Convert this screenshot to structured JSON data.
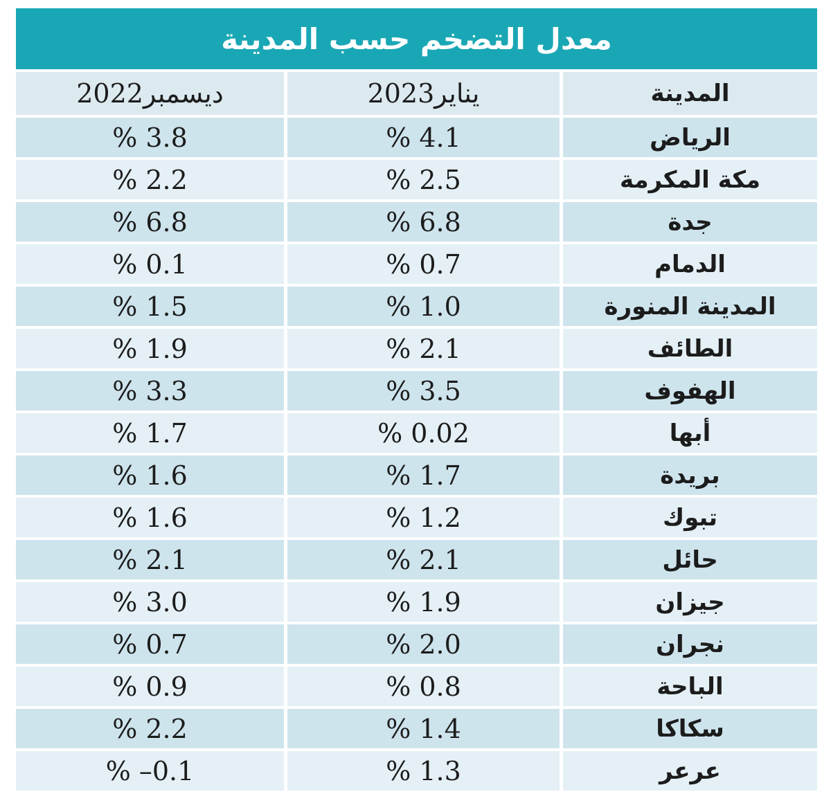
{
  "title": "معدل التضخم حسب المدينة",
  "header": {
    "city": "المدينة",
    "jan2023": "يناير2023",
    "dec2022": "ديسمبر2022"
  },
  "rows": [
    {
      "city": "الرياض",
      "jan": "% 4.1",
      "dec": "% 3.8"
    },
    {
      "city": "مكة المكرمة",
      "jan": "% 2.5",
      "dec": "% 2.2"
    },
    {
      "city": "جدة",
      "jan": "% 6.8",
      "dec": "% 6.8"
    },
    {
      "city": "الدمام",
      "jan": "% 0.7",
      "dec": "% 0.1"
    },
    {
      "city": "المدينة المنورة",
      "jan": "% 1.0",
      "dec": "% 1.5"
    },
    {
      "city": "الطائف",
      "jan": "% 2.1",
      "dec": "% 1.9"
    },
    {
      "city": "الهفوف",
      "jan": "% 3.5",
      "dec": "% 3.3"
    },
    {
      "city": "أبها",
      "jan": "% 0.02",
      "dec": "% 1.7"
    },
    {
      "city": "بريدة",
      "jan": "% 1.7",
      "dec": "% 1.6"
    },
    {
      "city": "تبوك",
      "jan": "% 1.2",
      "dec": "% 1.6"
    },
    {
      "city": "حائل",
      "jan": "% 2.1",
      "dec": "% 2.1"
    },
    {
      "city": "جيزان",
      "jan": "% 1.9",
      "dec": "% 3.0"
    },
    {
      "city": "نجران",
      "jan": "% 2.0",
      "dec": "% 0.7"
    },
    {
      "city": "الباحة",
      "jan": "% 0.8",
      "dec": "% 0.9"
    },
    {
      "city": "سكاكا",
      "jan": "% 1.4",
      "dec": "% 2.2"
    },
    {
      "city": "عرعر",
      "jan": "% 1.3",
      "dec": "% –0.1"
    }
  ],
  "colors": {
    "teal": "#1aa7b5",
    "row_dark": "#cee4ed",
    "row_light": "#e4f0f5",
    "header_row": "#dceaf0",
    "text": "#1c1c1c"
  },
  "chart_data": {
    "type": "table",
    "title": "معدل التضخم حسب المدينة",
    "columns": [
      "المدينة",
      "يناير2023",
      "ديسمبر2022"
    ],
    "categories": [
      "الرياض",
      "مكة المكرمة",
      "جدة",
      "الدمام",
      "المدينة المنورة",
      "الطائف",
      "الهفوف",
      "أبها",
      "بريدة",
      "تبوك",
      "حائل",
      "جيزان",
      "نجران",
      "الباحة",
      "سكاكا",
      "عرعر"
    ],
    "series": [
      {
        "name": "يناير2023",
        "values": [
          4.1,
          2.5,
          6.8,
          0.7,
          1.0,
          2.1,
          3.5,
          0.02,
          1.7,
          1.2,
          2.1,
          1.9,
          2.0,
          0.8,
          1.4,
          1.3
        ]
      },
      {
        "name": "ديسمبر2022",
        "values": [
          3.8,
          2.2,
          6.8,
          0.1,
          1.5,
          1.9,
          3.3,
          1.7,
          1.6,
          1.6,
          2.1,
          3.0,
          0.7,
          0.9,
          2.2,
          -0.1
        ]
      }
    ],
    "unit": "%"
  }
}
